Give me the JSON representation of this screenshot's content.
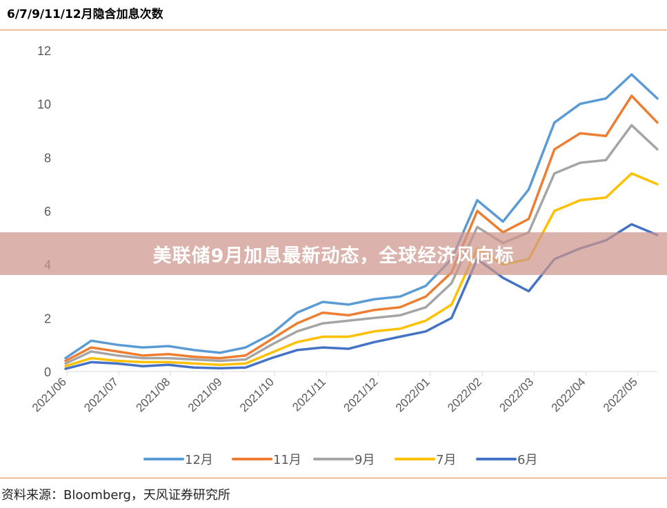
{
  "page": {
    "title": "6/7/9/11/12月隐含加息次数",
    "source": "资料来源：Bloomberg，天风证券研究所",
    "banner": "美联储9月加息最新动态，全球经济风向标"
  },
  "chart_data": {
    "type": "line",
    "title": "6/7/9/11/12月隐含加息次数",
    "xlabel": "",
    "ylabel": "",
    "ylim": [
      0,
      12
    ],
    "yticks": [
      "0",
      "2",
      "4",
      "6",
      "8",
      "10",
      "12"
    ],
    "x_tick_labels": [
      "2021/06",
      "2021/07",
      "2021/08",
      "2021/09",
      "2021/10",
      "2021/11",
      "2021/12",
      "2022/01",
      "2022/02",
      "2022/03",
      "2022/04",
      "2022/05"
    ],
    "grid": false,
    "legend": "bottom",
    "x": [
      "2021/06",
      "2021/06",
      "2021/07",
      "2021/07",
      "2021/08",
      "2021/08",
      "2021/09",
      "2021/09",
      "2021/10",
      "2021/10",
      "2021/11",
      "2021/11",
      "2021/12",
      "2021/12",
      "2022/01",
      "2022/01",
      "2022/02",
      "2022/02",
      "2022/03",
      "2022/03",
      "2022/04",
      "2022/04",
      "2022/05",
      "2022/05"
    ],
    "series": [
      {
        "name": "12月",
        "color": "#5b9bd5",
        "values": [
          0.5,
          1.15,
          1.0,
          0.9,
          0.95,
          0.8,
          0.7,
          0.9,
          1.4,
          2.2,
          2.6,
          2.5,
          2.7,
          2.8,
          3.2,
          4.2,
          6.4,
          5.6,
          6.8,
          9.3,
          10.0,
          10.2,
          11.1,
          10.2
        ]
      },
      {
        "name": "11月",
        "color": "#ed7d31",
        "values": [
          0.4,
          0.9,
          0.75,
          0.6,
          0.65,
          0.55,
          0.5,
          0.6,
          1.2,
          1.8,
          2.2,
          2.1,
          2.3,
          2.4,
          2.8,
          3.7,
          6.0,
          5.2,
          5.7,
          8.3,
          8.9,
          8.8,
          10.3,
          9.3
        ]
      },
      {
        "name": "9月",
        "color": "#a5a5a5",
        "values": [
          0.3,
          0.75,
          0.6,
          0.5,
          0.5,
          0.45,
          0.4,
          0.45,
          1.0,
          1.5,
          1.8,
          1.9,
          2.0,
          2.1,
          2.4,
          3.3,
          5.4,
          4.8,
          5.2,
          7.4,
          7.8,
          7.9,
          9.2,
          8.3
        ]
      },
      {
        "name": "7月",
        "color": "#ffc000",
        "values": [
          0.2,
          0.5,
          0.4,
          0.35,
          0.35,
          0.3,
          0.25,
          0.3,
          0.7,
          1.1,
          1.3,
          1.3,
          1.5,
          1.6,
          1.9,
          2.5,
          4.6,
          4.0,
          4.2,
          6.0,
          6.4,
          6.5,
          7.4,
          7.0
        ]
      },
      {
        "name": "6月",
        "color": "#4472c4",
        "values": [
          0.1,
          0.35,
          0.3,
          0.2,
          0.25,
          0.15,
          0.12,
          0.15,
          0.5,
          0.8,
          0.9,
          0.85,
          1.1,
          1.3,
          1.5,
          2.0,
          4.2,
          3.5,
          3.0,
          4.2,
          4.6,
          4.9,
          5.5,
          5.1
        ]
      }
    ]
  }
}
